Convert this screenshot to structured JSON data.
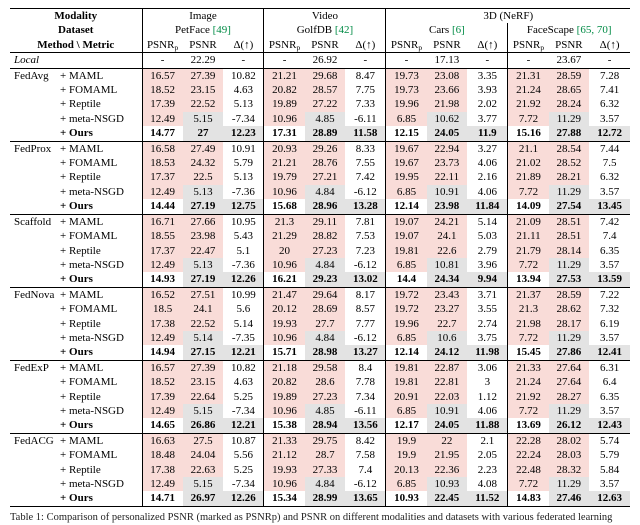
{
  "colors": {
    "highlight_pink": "#f9dcd8",
    "highlight_gray": "#e3e3e3",
    "citation_green": "#008b45"
  },
  "header": {
    "modality_label": "Modality",
    "dataset_label": "Dataset",
    "method_metric_label": "Method \\ Metric",
    "modalities": [
      {
        "label": "Image",
        "span": 3
      },
      {
        "label": "Video",
        "span": 3
      },
      {
        "label": "3D (NeRF)",
        "span": 6
      }
    ],
    "datasets": [
      {
        "name": "PetFace",
        "cite": "[49]"
      },
      {
        "name": "GolfDB",
        "cite": "[42]"
      },
      {
        "name": "Cars",
        "cite": "[6]"
      },
      {
        "name": "FaceScape",
        "cite": "[65, 70]"
      }
    ],
    "metrics": {
      "psnr_p": "PSNR",
      "psnr_p_sub": "p",
      "psnr": "PSNR",
      "delta": "Δ(↑)"
    }
  },
  "local_row": {
    "label": "Local",
    "values": [
      "-",
      "22.29",
      "-",
      "-",
      "26.92",
      "-",
      "-",
      "17.13",
      "-",
      "-",
      "23.67",
      "-"
    ]
  },
  "groups": [
    {
      "name": "FedAvg",
      "rows": [
        {
          "method": "+ MAML",
          "type": "base",
          "values": [
            "16.57",
            "27.39",
            "10.82",
            "21.21",
            "29.68",
            "8.47",
            "19.73",
            "23.08",
            "3.35",
            "21.31",
            "28.59",
            "7.28"
          ]
        },
        {
          "method": "+ FOMAML",
          "type": "base",
          "values": [
            "18.52",
            "23.15",
            "4.63",
            "20.82",
            "28.57",
            "7.75",
            "19.73",
            "23.66",
            "3.93",
            "21.24",
            "28.65",
            "7.41"
          ]
        },
        {
          "method": "+ Reptile",
          "type": "base",
          "values": [
            "17.39",
            "22.52",
            "5.13",
            "19.89",
            "27.22",
            "7.33",
            "19.96",
            "21.98",
            "2.02",
            "21.92",
            "28.24",
            "6.32"
          ]
        },
        {
          "method": "+ meta-NSGD",
          "type": "nsgd",
          "values": [
            "12.49",
            "5.15",
            "-7.34",
            "10.96",
            "4.85",
            "-6.11",
            "6.85",
            "10.62",
            "3.77",
            "7.72",
            "11.29",
            "3.57"
          ]
        },
        {
          "method": "+ Ours",
          "type": "ours",
          "values": [
            "14.77",
            "27",
            "12.23",
            "17.31",
            "28.89",
            "11.58",
            "12.15",
            "24.05",
            "11.9",
            "15.16",
            "27.88",
            "12.72"
          ]
        }
      ]
    },
    {
      "name": "FedProx",
      "rows": [
        {
          "method": "+ MAML",
          "type": "base",
          "values": [
            "16.58",
            "27.49",
            "10.91",
            "20.93",
            "29.26",
            "8.33",
            "19.67",
            "22.94",
            "3.27",
            "21.1",
            "28.54",
            "7.44"
          ]
        },
        {
          "method": "+ FOMAML",
          "type": "base",
          "values": [
            "18.53",
            "24.32",
            "5.79",
            "21.21",
            "28.76",
            "7.55",
            "19.67",
            "23.73",
            "4.06",
            "21.02",
            "28.52",
            "7.5"
          ]
        },
        {
          "method": "+ Reptile",
          "type": "base",
          "values": [
            "17.37",
            "22.5",
            "5.13",
            "19.79",
            "27.21",
            "7.42",
            "19.95",
            "22.11",
            "2.16",
            "21.89",
            "28.21",
            "6.32"
          ]
        },
        {
          "method": "+ meta-NSGD",
          "type": "nsgd",
          "values": [
            "12.49",
            "5.13",
            "-7.36",
            "10.96",
            "4.84",
            "-6.12",
            "6.85",
            "10.91",
            "4.06",
            "7.72",
            "11.29",
            "3.57"
          ]
        },
        {
          "method": "+ Ours",
          "type": "ours",
          "values": [
            "14.44",
            "27.19",
            "12.75",
            "15.68",
            "28.96",
            "13.28",
            "12.14",
            "23.98",
            "11.84",
            "14.09",
            "27.54",
            "13.45"
          ]
        }
      ]
    },
    {
      "name": "Scaffold",
      "rows": [
        {
          "method": "+ MAML",
          "type": "base",
          "values": [
            "16.71",
            "27.66",
            "10.95",
            "21.3",
            "29.11",
            "7.81",
            "19.07",
            "24.21",
            "5.14",
            "21.09",
            "28.51",
            "7.42"
          ]
        },
        {
          "method": "+ FOMAML",
          "type": "base",
          "values": [
            "18.55",
            "23.98",
            "5.43",
            "21.29",
            "28.82",
            "7.53",
            "19.07",
            "24.1",
            "5.03",
            "21.11",
            "28.51",
            "7.4"
          ]
        },
        {
          "method": "+ Reptile",
          "type": "base",
          "values": [
            "17.37",
            "22.47",
            "5.1",
            "20",
            "27.23",
            "7.23",
            "19.81",
            "22.6",
            "2.79",
            "21.79",
            "28.14",
            "6.35"
          ]
        },
        {
          "method": "+ meta-NSGD",
          "type": "nsgd",
          "values": [
            "12.49",
            "5.13",
            "-7.36",
            "10.96",
            "4.84",
            "-6.12",
            "6.85",
            "10.81",
            "3.96",
            "7.72",
            "11.29",
            "3.57"
          ]
        },
        {
          "method": "+ Ours",
          "type": "ours",
          "values": [
            "14.93",
            "27.19",
            "12.26",
            "16.21",
            "29.23",
            "13.02",
            "14.4",
            "24.34",
            "9.94",
            "13.94",
            "27.53",
            "13.59"
          ]
        }
      ]
    },
    {
      "name": "FedNova",
      "rows": [
        {
          "method": "+ MAML",
          "type": "base",
          "values": [
            "16.52",
            "27.51",
            "10.99",
            "21.47",
            "29.64",
            "8.17",
            "19.72",
            "23.43",
            "3.71",
            "21.37",
            "28.59",
            "7.22"
          ]
        },
        {
          "method": "+ FOMAML",
          "type": "base",
          "values": [
            "18.5",
            "24.1",
            "5.6",
            "20.12",
            "28.69",
            "8.57",
            "19.72",
            "23.27",
            "3.55",
            "21.3",
            "28.62",
            "7.32"
          ]
        },
        {
          "method": "+ Reptile",
          "type": "base",
          "values": [
            "17.38",
            "22.52",
            "5.14",
            "19.93",
            "27.7",
            "7.77",
            "19.96",
            "22.7",
            "2.74",
            "21.98",
            "28.17",
            "6.19"
          ]
        },
        {
          "method": "+ meta-NSGD",
          "type": "nsgd",
          "values": [
            "12.49",
            "5.14",
            "-7.35",
            "10.96",
            "4.84",
            "-6.12",
            "6.85",
            "10.6",
            "3.75",
            "7.72",
            "11.29",
            "3.57"
          ]
        },
        {
          "method": "+ Ours",
          "type": "ours",
          "values": [
            "14.94",
            "27.15",
            "12.21",
            "15.71",
            "28.98",
            "13.27",
            "12.14",
            "24.12",
            "11.98",
            "15.45",
            "27.86",
            "12.41"
          ]
        }
      ]
    },
    {
      "name": "FedExP",
      "rows": [
        {
          "method": "+ MAML",
          "type": "base",
          "values": [
            "16.57",
            "27.39",
            "10.82",
            "21.18",
            "29.58",
            "8.4",
            "19.81",
            "22.87",
            "3.06",
            "21.33",
            "27.64",
            "6.31"
          ]
        },
        {
          "method": "+ FOMAML",
          "type": "base",
          "values": [
            "18.52",
            "23.15",
            "4.63",
            "20.82",
            "28.6",
            "7.78",
            "19.81",
            "22.81",
            "3",
            "21.24",
            "27.64",
            "6.4"
          ]
        },
        {
          "method": "+ Reptile",
          "type": "base",
          "values": [
            "17.39",
            "22.64",
            "5.25",
            "19.89",
            "27.23",
            "7.34",
            "20.91",
            "22.03",
            "1.12",
            "21.92",
            "28.27",
            "6.35"
          ]
        },
        {
          "method": "+ meta-NSGD",
          "type": "nsgd",
          "values": [
            "12.49",
            "5.15",
            "-7.34",
            "10.96",
            "4.85",
            "-6.11",
            "6.85",
            "10.91",
            "4.06",
            "7.72",
            "11.29",
            "3.57"
          ]
        },
        {
          "method": "+ Ours",
          "type": "ours",
          "values": [
            "14.65",
            "26.86",
            "12.21",
            "15.38",
            "28.94",
            "13.56",
            "12.17",
            "24.05",
            "11.88",
            "13.69",
            "26.12",
            "12.43"
          ]
        }
      ]
    },
    {
      "name": "FedACG",
      "rows": [
        {
          "method": "+ MAML",
          "type": "base",
          "values": [
            "16.63",
            "27.5",
            "10.87",
            "21.33",
            "29.75",
            "8.42",
            "19.9",
            "22",
            "2.1",
            "22.28",
            "28.02",
            "5.74"
          ]
        },
        {
          "method": "+ FOMAML",
          "type": "base",
          "values": [
            "18.48",
            "24.04",
            "5.56",
            "21.12",
            "28.7",
            "7.58",
            "19.9",
            "21.95",
            "2.05",
            "22.24",
            "28.03",
            "5.79"
          ]
        },
        {
          "method": "+ Reptile",
          "type": "base",
          "values": [
            "17.38",
            "22.63",
            "5.25",
            "19.93",
            "27.33",
            "7.4",
            "20.13",
            "22.36",
            "2.23",
            "22.48",
            "28.32",
            "5.84"
          ]
        },
        {
          "method": "+ meta-NSGD",
          "type": "nsgd",
          "values": [
            "12.49",
            "5.15",
            "-7.34",
            "10.96",
            "4.84",
            "-6.12",
            "6.85",
            "10.93",
            "4.08",
            "7.72",
            "11.29",
            "3.57"
          ]
        },
        {
          "method": "+ Ours",
          "type": "ours",
          "values": [
            "14.71",
            "26.97",
            "12.26",
            "15.34",
            "28.99",
            "13.65",
            "10.93",
            "22.45",
            "11.52",
            "14.83",
            "27.46",
            "12.63"
          ]
        }
      ]
    }
  ],
  "caption": "Table 1: Comparison of personalized PSNR (marked as PSNRp) and PSNR on different modalities and datasets with various federated learning methods."
}
